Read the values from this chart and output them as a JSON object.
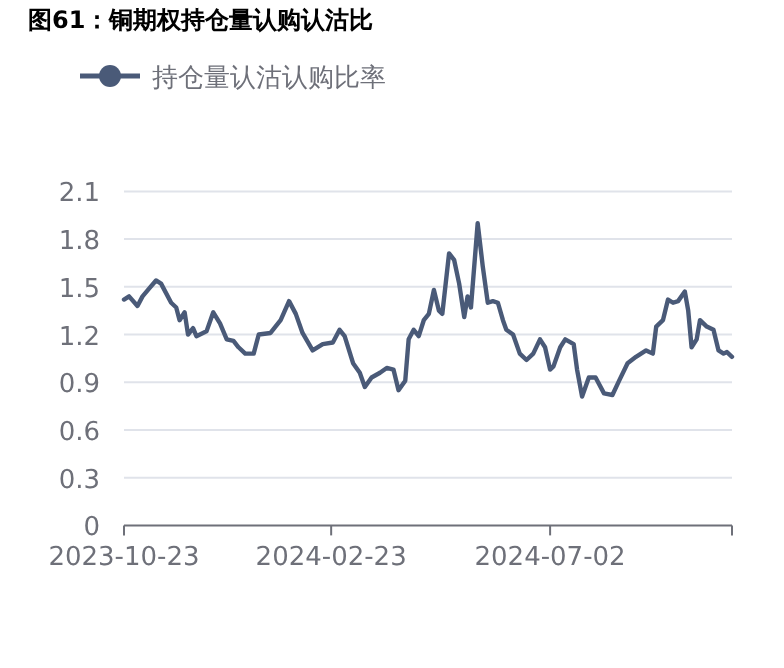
{
  "chart_data": {
    "type": "line",
    "title": "图61：铜期权持仓量认购认沽比",
    "x": [
      "2023-10-23",
      "2023-10-26",
      "2023-10-31",
      "2023-11-03",
      "2023-11-07",
      "2023-11-11",
      "2023-11-14",
      "2023-11-20",
      "2023-11-23",
      "2023-11-25",
      "2023-11-28",
      "2023-11-30",
      "2023-12-03",
      "2023-12-05",
      "2023-12-11",
      "2023-12-15",
      "2023-12-19",
      "2023-12-23",
      "2023-12-27",
      "2023-12-30",
      "2024-01-03",
      "2024-01-08",
      "2024-01-11",
      "2024-01-18",
      "2024-01-24",
      "2024-01-29",
      "2024-02-02",
      "2024-02-06",
      "2024-02-12",
      "2024-02-18",
      "2024-02-24",
      "2024-02-28",
      "2024-03-02",
      "2024-03-07",
      "2024-03-11",
      "2024-03-14",
      "2024-03-18",
      "2024-03-23",
      "2024-03-27",
      "2024-03-31",
      "2024-04-03",
      "2024-04-07",
      "2024-04-09",
      "2024-04-12",
      "2024-04-15",
      "2024-04-18",
      "2024-04-21",
      "2024-04-24",
      "2024-04-27",
      "2024-04-29",
      "2024-05-03",
      "2024-05-06",
      "2024-05-09",
      "2024-05-12",
      "2024-05-14",
      "2024-05-16",
      "2024-05-20",
      "2024-05-23",
      "2024-05-26",
      "2024-05-29",
      "2024-06-01",
      "2024-06-04",
      "2024-06-06",
      "2024-06-10",
      "2024-06-14",
      "2024-06-18",
      "2024-06-22",
      "2024-06-26",
      "2024-06-29",
      "2024-07-02",
      "2024-07-04",
      "2024-07-08",
      "2024-07-11",
      "2024-07-16",
      "2024-07-18",
      "2024-07-21",
      "2024-07-25",
      "2024-07-29",
      "2024-08-03",
      "2024-08-08",
      "2024-08-12",
      "2024-08-17",
      "2024-08-22",
      "2024-08-28",
      "2024-09-01",
      "2024-09-03",
      "2024-09-07",
      "2024-09-10",
      "2024-09-13",
      "2024-09-16",
      "2024-09-20",
      "2024-09-22",
      "2024-09-24",
      "2024-09-27",
      "2024-09-29",
      "2024-10-03",
      "2024-10-07",
      "2024-10-10",
      "2024-10-13",
      "2024-10-15",
      "2024-10-18"
    ],
    "series": [
      {
        "name": "持仓量认沽认购比率",
        "color": "#4a5a78",
        "values": [
          1.42,
          1.44,
          1.38,
          1.44,
          1.49,
          1.54,
          1.52,
          1.4,
          1.37,
          1.29,
          1.34,
          1.2,
          1.24,
          1.19,
          1.22,
          1.34,
          1.27,
          1.17,
          1.16,
          1.12,
          1.08,
          1.08,
          1.2,
          1.21,
          1.29,
          1.41,
          1.33,
          1.21,
          1.1,
          1.14,
          1.15,
          1.23,
          1.19,
          1.02,
          0.96,
          0.87,
          0.93,
          0.96,
          0.99,
          0.98,
          0.85,
          0.91,
          1.17,
          1.23,
          1.19,
          1.29,
          1.33,
          1.48,
          1.35,
          1.33,
          1.71,
          1.67,
          1.52,
          1.31,
          1.44,
          1.37,
          1.9,
          1.63,
          1.4,
          1.41,
          1.4,
          1.29,
          1.23,
          1.2,
          1.08,
          1.04,
          1.08,
          1.17,
          1.12,
          0.98,
          1.0,
          1.12,
          1.17,
          1.14,
          0.98,
          0.81,
          0.93,
          0.93,
          0.83,
          0.82,
          0.91,
          1.02,
          1.06,
          1.1,
          1.08,
          1.25,
          1.29,
          1.42,
          1.4,
          1.41,
          1.47,
          1.35,
          1.12,
          1.17,
          1.29,
          1.25,
          1.23,
          1.1,
          1.08,
          1.09,
          1.06
        ]
      }
    ],
    "xlim": [
      "2023-10-23",
      "2024-10-18"
    ],
    "xticks": [
      "2023-10-23",
      "2024-02-23",
      "2024-07-02",
      {
        "value": "2024-10-18",
        "label": null
      }
    ],
    "ylim": [
      0,
      2.1
    ],
    "yticks": [
      0,
      0.3,
      0.6,
      0.9,
      1.2,
      1.5,
      1.8,
      2.1
    ],
    "grid": "y",
    "legend": "top left",
    "line_style": "solid"
  }
}
